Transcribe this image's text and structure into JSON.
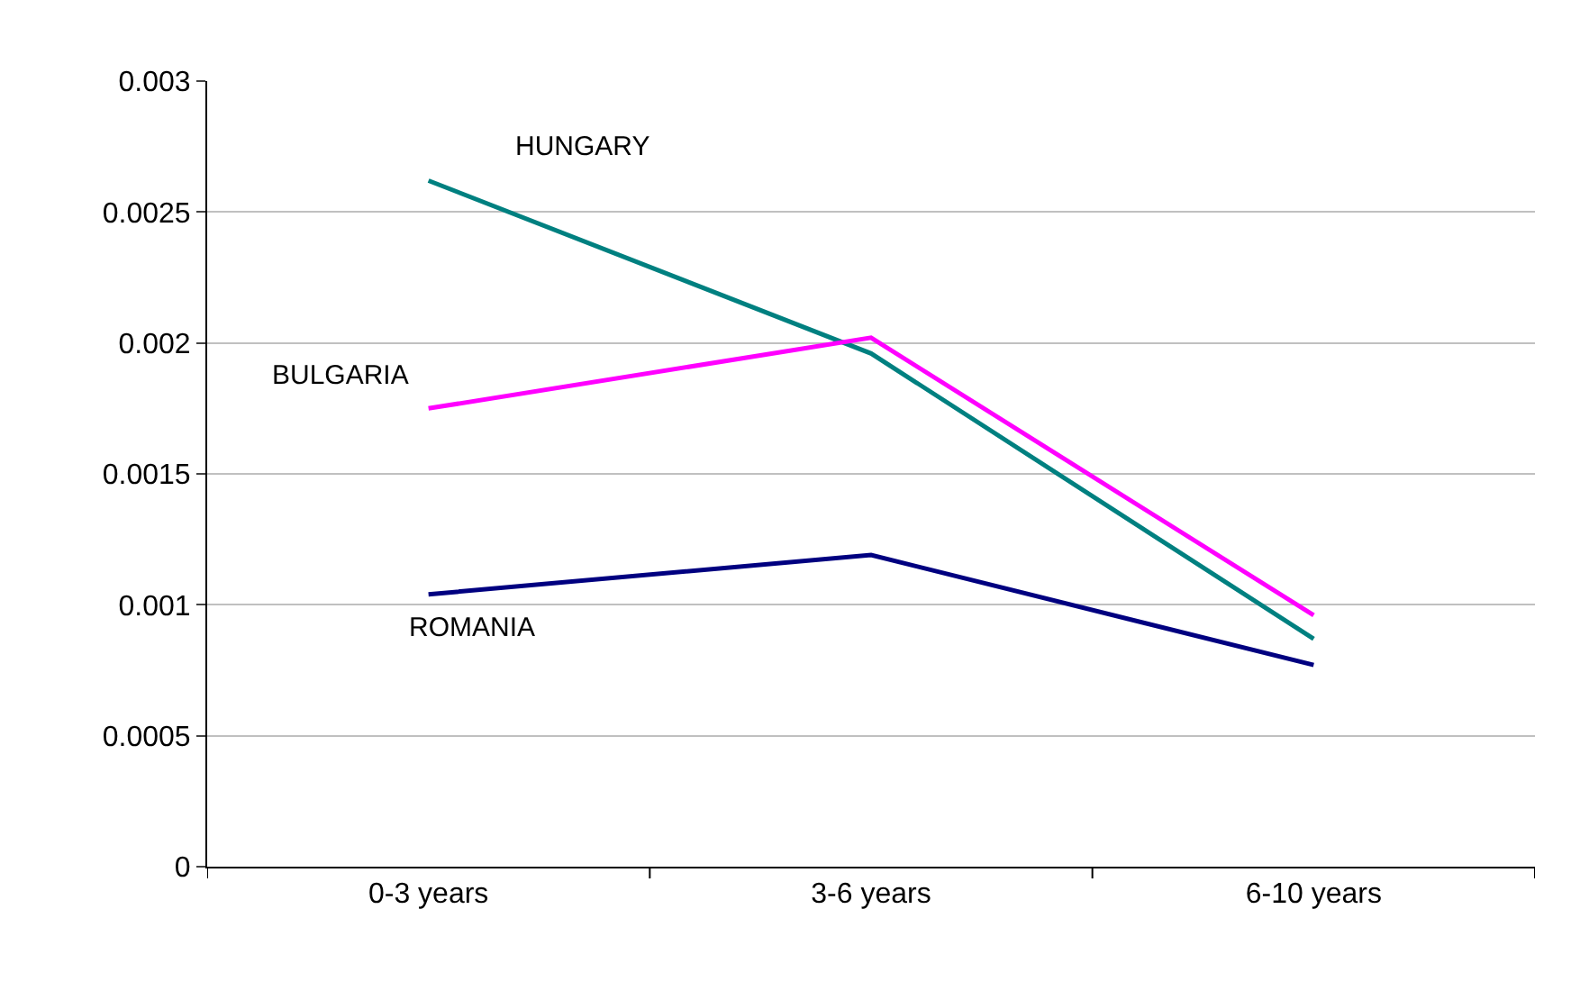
{
  "chart_data": {
    "type": "line",
    "categories": [
      "0-3 years",
      "3-6 years",
      "6-10 years"
    ],
    "series": [
      {
        "name": "HUNGARY",
        "color": "#008080",
        "values": [
          0.00262,
          0.00196,
          0.00087
        ]
      },
      {
        "name": "BULGARIA",
        "color": "#ff00ff",
        "values": [
          0.00175,
          0.00202,
          0.00096
        ]
      },
      {
        "name": "ROMANIA",
        "color": "#000080",
        "values": [
          0.00104,
          0.00119,
          0.00077
        ]
      }
    ],
    "ylim": [
      0,
      0.003
    ],
    "yticks": [
      0,
      0.0005,
      0.001,
      0.0015,
      0.002,
      0.0025,
      0.003
    ],
    "grid": "y",
    "legend": false,
    "marker": "none",
    "line_style": "solid"
  }
}
